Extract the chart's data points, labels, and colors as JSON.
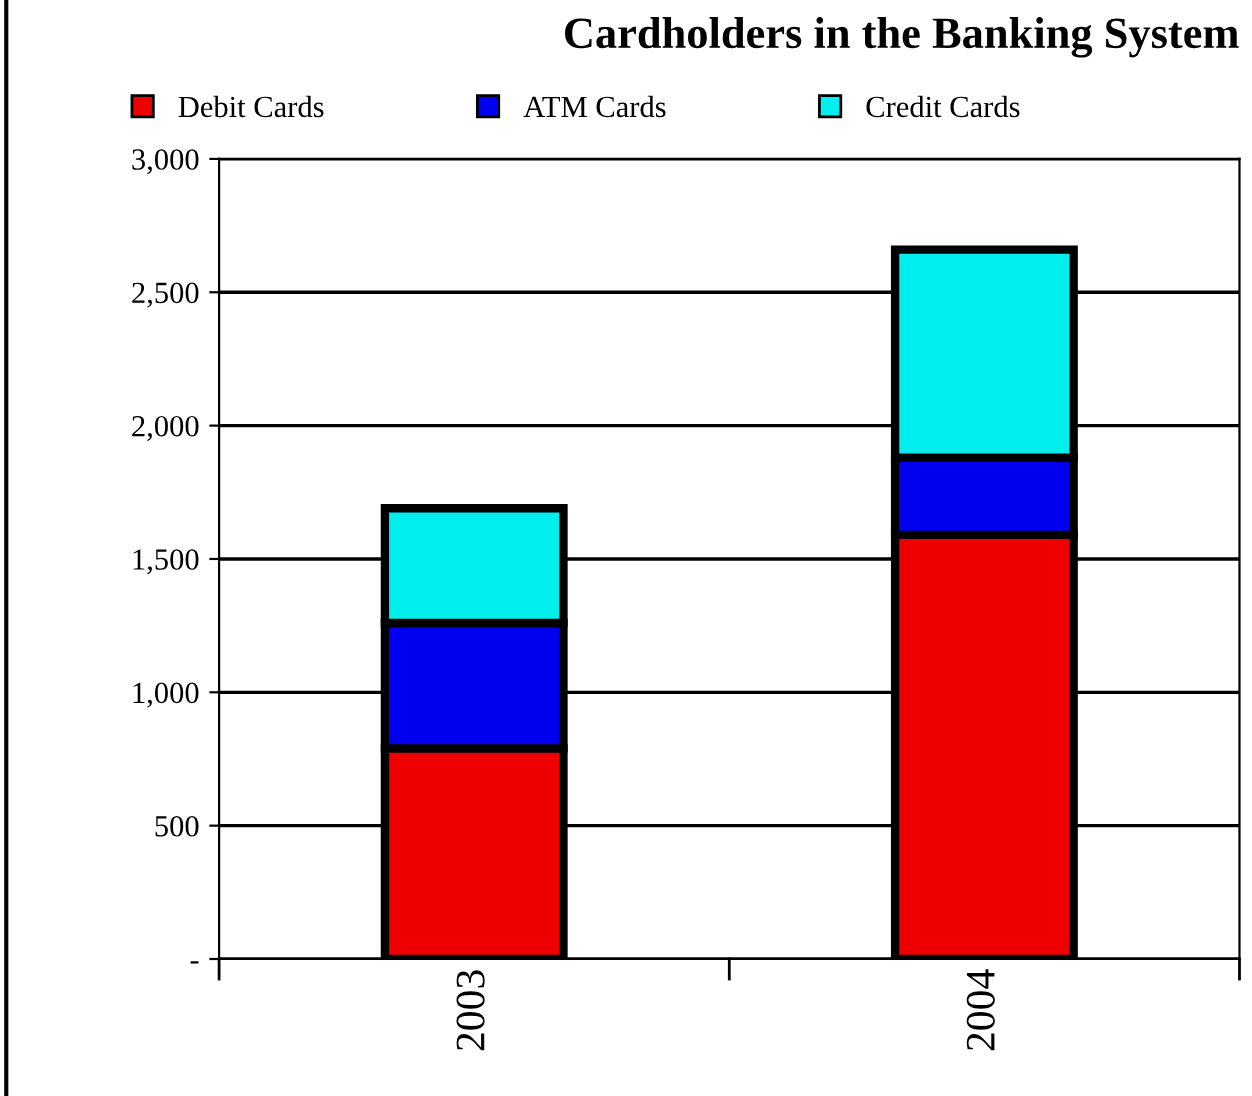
{
  "chart_data": {
    "type": "bar",
    "title": "Cardholders in the Banking System",
    "categories": [
      "2003",
      "2004"
    ],
    "stacked": true,
    "series": [
      {
        "name": "Debit Cards",
        "color": "#ee0000",
        "values": [
          790,
          1590
        ]
      },
      {
        "name": "ATM Cards",
        "color": "#0000ee",
        "values": [
          470,
          290
        ]
      },
      {
        "name": "Credit Cards",
        "color": "#00eeee",
        "values": [
          430,
          780
        ]
      }
    ],
    "ylim": [
      0,
      3000
    ],
    "yticks": [
      {
        "value": 0,
        "label": "-"
      },
      {
        "value": 500,
        "label": "500"
      },
      {
        "value": 1000,
        "label": "1,000"
      },
      {
        "value": 1500,
        "label": "1,500"
      },
      {
        "value": 2000,
        "label": "2,000"
      },
      {
        "value": 2500,
        "label": "2,500"
      },
      {
        "value": 3000,
        "label": "3,000"
      }
    ],
    "grid": "y",
    "legend": "top"
  }
}
